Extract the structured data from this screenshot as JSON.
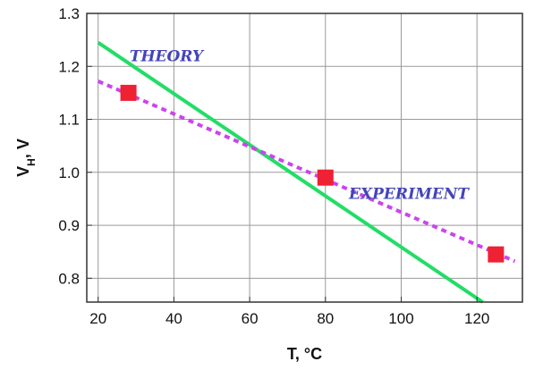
{
  "chart_data": {
    "type": "line",
    "xlabel": "T, °C",
    "ylabel": {
      "base": "V",
      "sub": "H",
      "suffix": ", V"
    },
    "xlim": [
      17,
      132
    ],
    "ylim": [
      0.755,
      1.3
    ],
    "xticks": [
      20,
      40,
      60,
      80,
      100,
      120
    ],
    "yticks": [
      0.8,
      0.9,
      1.0,
      1.1,
      1.2,
      1.3
    ],
    "xtick_labels": [
      "20",
      "40",
      "60",
      "80",
      "100",
      "120"
    ],
    "ytick_labels": [
      "0.8",
      "0.9",
      "1.0",
      "1.1",
      "1.2",
      "1.3"
    ],
    "grid": true,
    "series": [
      {
        "name": "THEORY",
        "style": "solid",
        "color": "#22dd66",
        "x": [
          20,
          121.5
        ],
        "y": [
          1.245,
          0.755
        ]
      },
      {
        "name": "EXPERIMENT",
        "style": "dotted",
        "color": "#cc44ee",
        "x": [
          20,
          130
        ],
        "y": [
          1.172,
          0.832
        ]
      },
      {
        "name": "",
        "style": "markers",
        "marker": "square",
        "color": "#ee2233",
        "x": [
          28,
          80,
          125
        ],
        "y": [
          1.15,
          0.99,
          0.845
        ]
      }
    ],
    "annotations": [
      {
        "text": "THEORY",
        "x": 38,
        "y": 1.21,
        "color": "#4444bb"
      },
      {
        "text": "EXPERIMENT",
        "x": 102,
        "y": 0.95,
        "color": "#4444bb"
      }
    ]
  }
}
